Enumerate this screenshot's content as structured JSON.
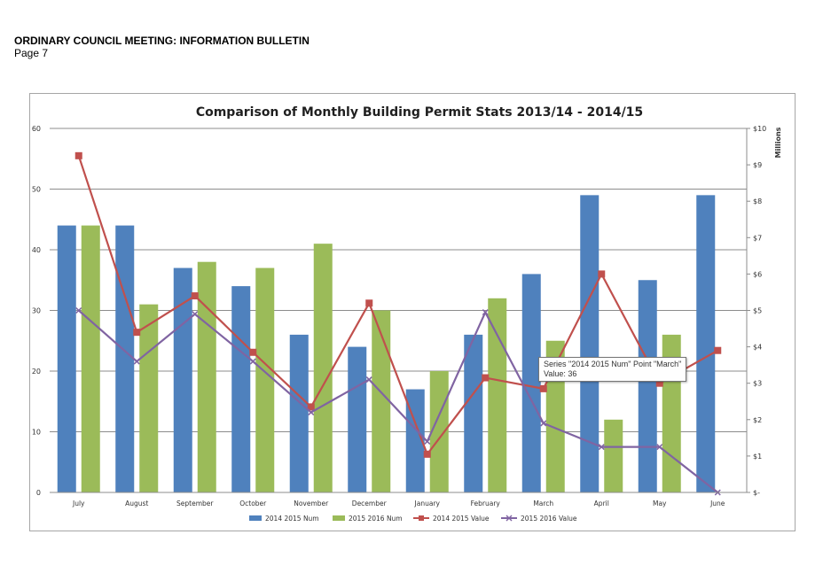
{
  "document": {
    "heading": "ORDINARY COUNCIL MEETING: INFORMATION BULLETIN",
    "page_label": "Page 7"
  },
  "tooltip": {
    "line1": "Series \"2014 2015 Num\" Point \"March\"",
    "line2": "Value: 36"
  },
  "chart_data": {
    "type": "bar",
    "title": "Comparison of Monthly Building Permit Stats 2013/14 - 2014/15",
    "categories": [
      "July",
      "August",
      "September",
      "October",
      "November",
      "December",
      "January",
      "February",
      "March",
      "April",
      "May",
      "June"
    ],
    "left_axis": {
      "ylim": [
        0,
        60
      ],
      "ticks": [
        "0",
        "10",
        "20",
        "30",
        "40",
        "50",
        "60"
      ]
    },
    "right_axis": {
      "label": "Millions",
      "ylim": [
        0,
        10
      ],
      "ticks": [
        "$-",
        "$1",
        "$2",
        "$3",
        "$4",
        "$5",
        "$6",
        "$7",
        "$8",
        "$9",
        "$10"
      ]
    },
    "grid": true,
    "legend_position": "bottom",
    "series": [
      {
        "name": "2014 2015 Num",
        "kind": "bar",
        "axis": "left",
        "color": "#4f81bd",
        "values": [
          44,
          44,
          37,
          34,
          26,
          24,
          17,
          26,
          36,
          49,
          35,
          49
        ]
      },
      {
        "name": "2015 2016 Num",
        "kind": "bar",
        "axis": "left",
        "color": "#9bbb59",
        "values": [
          44,
          31,
          38,
          37,
          41,
          30,
          20,
          32,
          25,
          12,
          26,
          null
        ]
      },
      {
        "name": "2014 2015 Value",
        "kind": "line",
        "axis": "right",
        "color": "#c0504d",
        "marker": "square",
        "values": [
          9.25,
          4.4,
          5.4,
          3.85,
          2.35,
          5.2,
          1.05,
          3.15,
          2.85,
          6.0,
          3.0,
          3.9
        ]
      },
      {
        "name": "2015 2016 Value",
        "kind": "line",
        "axis": "right",
        "color": "#8064a2",
        "marker": "x",
        "values": [
          5.0,
          3.6,
          4.9,
          3.6,
          2.2,
          3.1,
          1.4,
          4.95,
          1.9,
          1.25,
          1.25,
          0.0
        ]
      }
    ]
  }
}
